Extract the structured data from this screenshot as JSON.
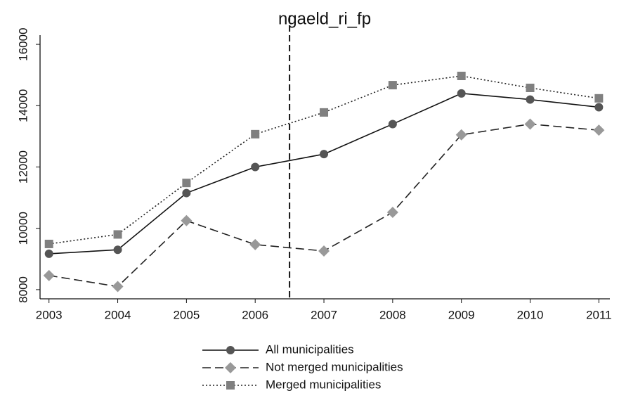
{
  "chart_data": {
    "type": "line",
    "title": "ngaeld_ri_fp",
    "x": [
      2003,
      2004,
      2005,
      2006,
      2007,
      2008,
      2009,
      2010,
      2011
    ],
    "series": [
      {
        "name": "All municipalities",
        "color": "#555555",
        "line": "#111111",
        "dash": "solid",
        "marker": "circle",
        "values": [
          9170,
          9300,
          11150,
          12000,
          12420,
          13400,
          14400,
          14200,
          13950
        ]
      },
      {
        "name": "Not merged municipalities",
        "color": "#999999",
        "line": "#222222",
        "dash": "dashed",
        "marker": "diamond",
        "values": [
          8460,
          8100,
          10250,
          9470,
          9260,
          10520,
          13050,
          13400,
          13200
        ]
      },
      {
        "name": "Merged municipalities",
        "color": "#808080",
        "line": "#222222",
        "dash": "dotted",
        "marker": "square",
        "values": [
          9490,
          9800,
          11480,
          13070,
          13780,
          14670,
          14970,
          14580,
          14240
        ]
      }
    ],
    "vline": 2006.5,
    "xlim": [
      2002.87,
      2011.16
    ],
    "xticks": [
      2003,
      2004,
      2005,
      2006,
      2007,
      2008,
      2009,
      2010,
      2011
    ],
    "ylim": [
      7700,
      16300
    ],
    "yticks": [
      8000,
      10000,
      12000,
      14000,
      16000
    ],
    "legend": "bottom"
  }
}
